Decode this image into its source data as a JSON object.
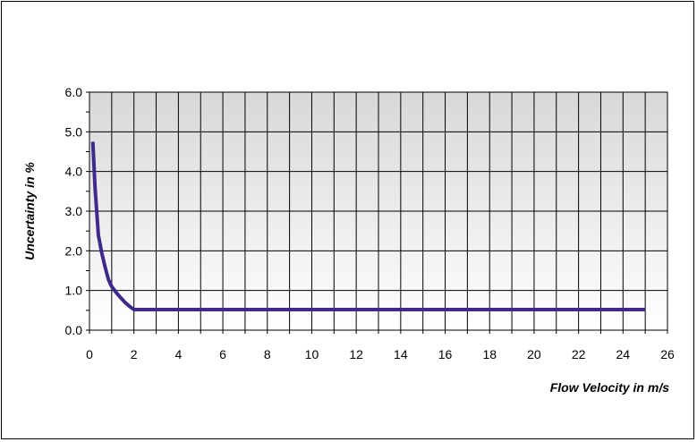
{
  "chart_data": {
    "type": "line",
    "title": "",
    "xlabel": "Flow Velocity in m/s",
    "ylabel": "Uncertainty in %",
    "xlim": [
      0,
      26
    ],
    "ylim": [
      0,
      6.0
    ],
    "x_ticks": [
      "0",
      "2",
      "4",
      "6",
      "8",
      "10",
      "12",
      "14",
      "16",
      "18",
      "20",
      "22",
      "24",
      "26"
    ],
    "y_ticks": [
      "0.0",
      "1.0",
      "2.0",
      "3.0",
      "4.0",
      "5.0",
      "6.0"
    ],
    "grid": true,
    "legend": "none",
    "series": [
      {
        "color": "#3f2a8c",
        "x": [
          0.15,
          0.25,
          0.4,
          0.55,
          0.7,
          0.85,
          1.0,
          1.2,
          1.4,
          1.6,
          1.8,
          2.0,
          3,
          5,
          10,
          15,
          20,
          25
        ],
        "y": [
          4.75,
          3.6,
          2.4,
          1.95,
          1.6,
          1.28,
          1.1,
          0.95,
          0.82,
          0.7,
          0.6,
          0.52,
          0.52,
          0.52,
          0.52,
          0.52,
          0.52,
          0.52
        ]
      }
    ]
  }
}
